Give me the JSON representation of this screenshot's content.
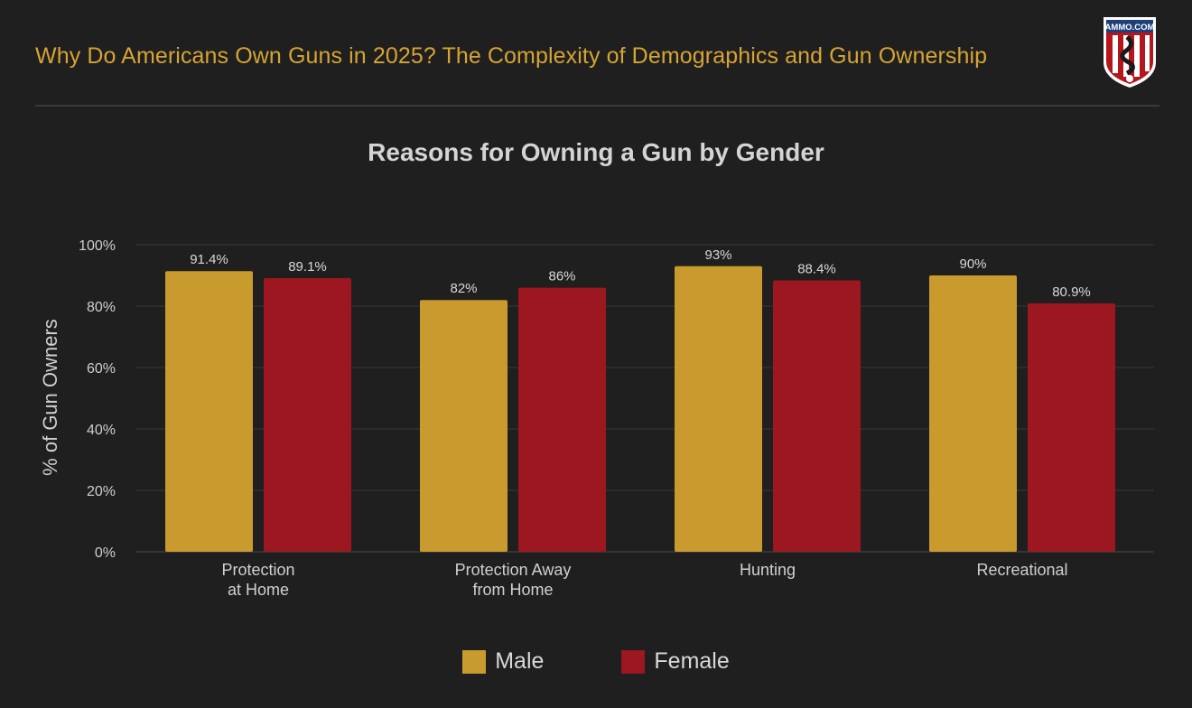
{
  "header": {
    "title": "Why Do Americans Own Guns in 2025? The Complexity of Demographics and Gun Ownership",
    "logo_text": "AMMO.COM"
  },
  "colors": {
    "background": "#1f1f1f",
    "male": "#c99a2e",
    "female": "#9c171f",
    "gold_text": "#d6a433",
    "grid": "#3a3a3a"
  },
  "chart_data": {
    "type": "bar",
    "title": "Reasons for Owning a Gun by Gender",
    "xlabel": "",
    "ylabel": "% of Gun Owners",
    "ylim": [
      0,
      100
    ],
    "yticks": [
      "0%",
      "20%",
      "40%",
      "60%",
      "80%",
      "100%"
    ],
    "ytick_values": [
      0,
      20,
      40,
      60,
      80,
      100
    ],
    "categories": [
      [
        "Protection",
        "at Home"
      ],
      [
        "Protection Away",
        "from Home"
      ],
      [
        "Hunting"
      ],
      [
        "Recreational"
      ]
    ],
    "series": [
      {
        "name": "Male",
        "values": [
          91.4,
          82,
          93,
          90
        ],
        "labels": [
          "91.4%",
          "82%",
          "93%",
          "90%"
        ]
      },
      {
        "name": "Female",
        "values": [
          89.1,
          86,
          88.4,
          80.9
        ],
        "labels": [
          "89.1%",
          "86%",
          "88.4%",
          "80.9%"
        ]
      }
    ],
    "grid": true,
    "legend_position": "bottom-center"
  }
}
